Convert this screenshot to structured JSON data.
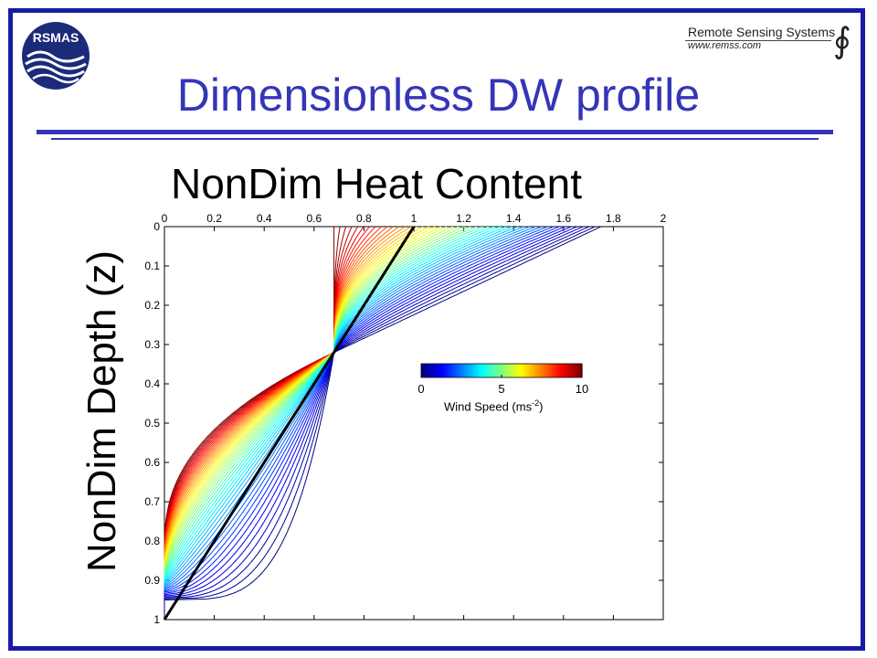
{
  "slide": {
    "title": "Dimensionless DW profile",
    "frame_color": "#1a1aa8",
    "title_color": "#3535b8"
  },
  "logos": {
    "left": {
      "text": "RSMAS",
      "color": "#1c2a7a"
    },
    "right": {
      "name": "Remote Sensing Systems",
      "url": "www.remss.com",
      "symbol": "∮"
    }
  },
  "chart_data": {
    "type": "line",
    "title": "NonDim Heat Content",
    "xlabel": "",
    "ylabel": "NonDim Depth (z)",
    "xlim": [
      0,
      2
    ],
    "ylim": [
      0,
      1
    ],
    "y_reversed": true,
    "x_axis_position": "top",
    "x_ticks": [
      "0",
      "0.2",
      "0.4",
      "0.6",
      "0.8",
      "1",
      "1.2",
      "1.4",
      "1.6",
      "1.8",
      "2"
    ],
    "y_ticks": [
      "0",
      "0.1",
      "0.2",
      "0.3",
      "0.4",
      "0.5",
      "0.6",
      "0.7",
      "0.8",
      "0.9",
      "1"
    ],
    "grid": false,
    "colormap": "jet",
    "colorbar": {
      "label": "Wind Speed (ms",
      "label_superscript": "-2",
      "label_suffix": ")",
      "ticks": [
        "0",
        "5",
        "10"
      ],
      "range": [
        0,
        10
      ],
      "placement": "center-right"
    },
    "profile_family": {
      "description_series_count": 46,
      "wind_speed_range": [
        0,
        10
      ],
      "surface_value_range": [
        0.68,
        1.75
      ],
      "bottom_value": 0,
      "crossing_point": {
        "x": 0.68,
        "z": 0.32
      }
    },
    "reference_line": {
      "name": "",
      "color": "#000000",
      "x": [
        1.0,
        0.0
      ],
      "z": [
        0.0,
        1.0
      ]
    }
  }
}
